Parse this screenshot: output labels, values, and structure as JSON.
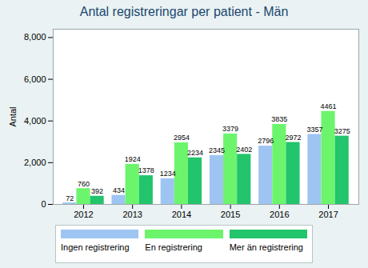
{
  "chart_data": {
    "type": "bar",
    "title": "Antal registreringar per patient - Män",
    "ylabel": "Antal",
    "categories": [
      "2012",
      "2013",
      "2014",
      "2015",
      "2016",
      "2017"
    ],
    "series": [
      {
        "name": "Ingen registrering",
        "color": "#9ec5f2",
        "values": [
          72,
          434,
          1234,
          2345,
          2796,
          3357
        ]
      },
      {
        "name": "En registrering",
        "color": "#6cf56c",
        "values": [
          760,
          1924,
          2954,
          3379,
          3835,
          4461
        ]
      },
      {
        "name": "Mer än registrering",
        "color": "#22c46c",
        "values": [
          392,
          1378,
          2234,
          2402,
          2972,
          3275
        ]
      }
    ],
    "ylim": [
      0,
      8400
    ],
    "yticks": [
      {
        "value": 0,
        "label": "0"
      },
      {
        "value": 2000,
        "label": "2,000"
      },
      {
        "value": 4000,
        "label": "4,000"
      },
      {
        "value": 6000,
        "label": "6,000"
      },
      {
        "value": 8000,
        "label": "8,000"
      }
    ],
    "grid": false,
    "legend": "bottom",
    "data_labels": true
  }
}
